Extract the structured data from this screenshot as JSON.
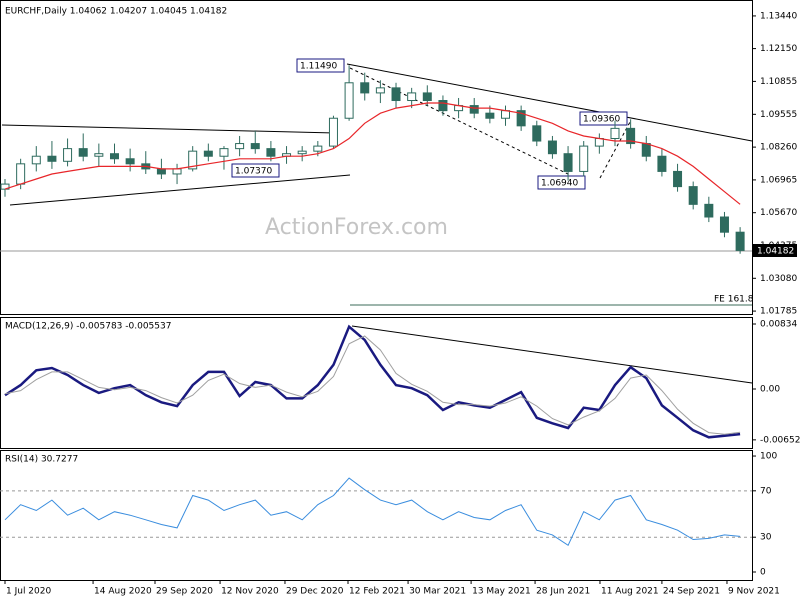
{
  "chart_data": [
    {
      "type": "candlestick",
      "title": "EURCHF,Daily  1.04062 1.04207 1.04045 1.04182",
      "color": "#2e6b5e",
      "open": [
        1.066,
        1.068,
        1.076,
        1.079,
        1.077,
        1.082,
        1.079,
        1.08,
        1.078,
        1.076,
        1.074,
        1.072,
        1.074,
        1.081,
        1.079,
        1.082,
        1.084,
        1.082,
        1.079,
        1.08,
        1.081,
        1.083,
        1.094,
        1.108,
        1.104,
        1.106,
        1.101,
        1.104,
        1.101,
        1.097,
        1.099,
        1.096,
        1.094,
        1.097,
        1.091,
        1.085,
        1.08,
        1.073,
        1.083,
        1.086,
        1.09,
        1.084,
        1.079,
        1.073,
        1.067,
        1.06,
        1.055,
        1.049
      ],
      "high": [
        1.07,
        1.078,
        1.083,
        1.085,
        1.086,
        1.088,
        1.084,
        1.084,
        1.082,
        1.081,
        1.078,
        1.076,
        1.083,
        1.084,
        1.083,
        1.087,
        1.089,
        1.085,
        1.083,
        1.083,
        1.085,
        1.095,
        1.1149,
        1.112,
        1.109,
        1.108,
        1.106,
        1.107,
        1.103,
        1.102,
        1.102,
        1.099,
        1.099,
        1.099,
        1.093,
        1.087,
        1.083,
        1.085,
        1.088,
        1.093,
        1.0936,
        1.087,
        1.082,
        1.076,
        1.069,
        1.063,
        1.057,
        1.051
      ],
      "low": [
        1.063,
        1.066,
        1.073,
        1.074,
        1.075,
        1.077,
        1.075,
        1.076,
        1.073,
        1.072,
        1.07,
        1.068,
        1.073,
        1.077,
        1.0737,
        1.079,
        1.08,
        1.077,
        1.076,
        1.077,
        1.079,
        1.082,
        1.093,
        1.101,
        1.1,
        1.098,
        1.098,
        1.099,
        1.095,
        1.094,
        1.094,
        1.092,
        1.091,
        1.089,
        1.083,
        1.078,
        1.0694,
        1.071,
        1.08,
        1.083,
        1.082,
        1.077,
        1.071,
        1.065,
        1.058,
        1.053,
        1.047,
        1.0405
      ],
      "close": [
        1.068,
        1.076,
        1.079,
        1.077,
        1.082,
        1.079,
        1.08,
        1.078,
        1.076,
        1.074,
        1.072,
        1.074,
        1.081,
        1.079,
        1.082,
        1.084,
        1.082,
        1.079,
        1.08,
        1.081,
        1.083,
        1.094,
        1.108,
        1.104,
        1.106,
        1.101,
        1.104,
        1.101,
        1.097,
        1.099,
        1.096,
        1.094,
        1.097,
        1.091,
        1.085,
        1.08,
        1.073,
        1.083,
        1.086,
        1.09,
        1.084,
        1.079,
        1.073,
        1.067,
        1.06,
        1.055,
        1.049,
        1.0418
      ],
      "overlay": {
        "color": "#e8262a",
        "values": [
          1.066,
          1.068,
          1.07,
          1.072,
          1.073,
          1.074,
          1.075,
          1.075,
          1.075,
          1.075,
          1.074,
          1.074,
          1.075,
          1.076,
          1.077,
          1.078,
          1.078,
          1.078,
          1.079,
          1.079,
          1.08,
          1.082,
          1.086,
          1.092,
          1.096,
          1.098,
          1.099,
          1.1,
          1.1,
          1.099,
          1.098,
          1.098,
          1.097,
          1.096,
          1.094,
          1.092,
          1.089,
          1.087,
          1.086,
          1.085,
          1.085,
          1.084,
          1.082,
          1.079,
          1.075,
          1.07,
          1.065,
          1.06
        ]
      },
      "xlim": [
        -0.32,
        47.76
      ],
      "ylim": [
        1.0167,
        1.1399
      ],
      "yticks": [
        {
          "value": 1.1344,
          "label": "1.13440"
        },
        {
          "value": 1.1215,
          "label": "1.12150"
        },
        1.10855,
        1.09555,
        {
          "value": 1.0826,
          "label": "1.08260"
        },
        1.06965,
        {
          "value": 1.0567,
          "label": "1.05670"
        },
        1.04375,
        {
          "value": 1.0308,
          "label": "1.03080"
        },
        1.01785
      ],
      "annotations": [
        "1.11490",
        "1.07370",
        "1.06940",
        "1.09360",
        "FE 161.8",
        "ActionForex.com",
        "1.04182"
      ]
    },
    {
      "type": "line",
      "title": "MACD(12,26,9) -0.005783 -0.005537",
      "series": [
        {
          "color": "#1a1a80",
          "width": 2.5,
          "values": [
            -0.0008,
            0.0005,
            0.0024,
            0.0027,
            0.0018,
            0.0005,
            -0.0005,
            0.0001,
            0.0005,
            -0.0008,
            -0.0017,
            -0.0022,
            0.0005,
            0.0022,
            0.0022,
            -0.0009,
            0.0009,
            0.0005,
            -0.0012,
            -0.0012,
            0.0005,
            0.0031,
            0.008,
            0.0063,
            0.0031,
            0.0005,
            0.0001,
            -0.0008,
            -0.0027,
            -0.0017,
            -0.0021,
            -0.0024,
            -0.0014,
            -0.0004,
            -0.0037,
            -0.0044,
            -0.005,
            -0.0024,
            -0.0027,
            0.0005,
            0.0028,
            0.0014,
            -0.0021,
            -0.0037,
            -0.0053,
            -0.0062,
            -0.006,
            -0.005783
          ]
        },
        {
          "color": "#a0a0a0",
          "width": 1,
          "values": [
            -0.0006,
            -0.0002,
            0.0012,
            0.0022,
            0.0022,
            0.0012,
            0.0002,
            -0.0001,
            0.0002,
            -0.0002,
            -0.0011,
            -0.0018,
            -0.0008,
            0.0011,
            0.0019,
            0.0007,
            0.0002,
            0.0005,
            -0.0004,
            -0.001,
            -0.0003,
            0.0016,
            0.0058,
            0.0068,
            0.005,
            0.002,
            0.0006,
            -0.0003,
            -0.0017,
            -0.002,
            -0.002,
            -0.0022,
            -0.0018,
            -0.001,
            -0.0022,
            -0.0038,
            -0.0046,
            -0.0036,
            -0.0028,
            -0.0012,
            0.0014,
            0.0018,
            -0.0002,
            -0.0026,
            -0.0044,
            -0.0056,
            -0.0058,
            -0.005537
          ]
        }
      ],
      "xlim": [
        -0.32,
        47.76
      ],
      "ylim": [
        -0.00757,
        0.00911
      ],
      "yticks": [
        0.00834,
        {
          "value": 0,
          "label": "0.00"
        },
        -0.006525
      ]
    },
    {
      "type": "line",
      "title": "RSI(14) 30.7277",
      "series": [
        {
          "color": "#3a8dde",
          "width": 1,
          "values": [
            45,
            58,
            53,
            62,
            49,
            55,
            45,
            52,
            49,
            45,
            41,
            38,
            66,
            62,
            53,
            58,
            62,
            49,
            52,
            45,
            58,
            66,
            81,
            71,
            62,
            58,
            62,
            52,
            45,
            52,
            47,
            45,
            53,
            58,
            36,
            32,
            23,
            52,
            45,
            62,
            66,
            45,
            41,
            36,
            28,
            29,
            32,
            30.7277
          ]
        }
      ],
      "xlim": [
        -0.32,
        47.76
      ],
      "ylim": [
        -6.9,
        105.2
      ],
      "yticks": [
        100,
        70,
        30,
        0
      ],
      "levels": [
        70,
        30
      ],
      "xticks": [
        {
          "value": 0,
          "label": "1 Jul 2020"
        },
        {
          "value": 5.63,
          "label": "14 Aug 2020"
        },
        {
          "value": 9.59,
          "label": "29 Sep 2020"
        },
        {
          "value": 13.75,
          "label": "12 Nov 2020"
        },
        {
          "value": 17.9,
          "label": "29 Dec 2020"
        },
        {
          "value": 21.93,
          "label": "12 Feb 2021"
        },
        {
          "value": 25.77,
          "label": "30 Mar 2021"
        },
        {
          "value": 29.8,
          "label": "13 May 2021"
        },
        {
          "value": 33.89,
          "label": "28 Jun 2021"
        },
        {
          "value": 38.04,
          "label": "11 Aug 2021"
        },
        {
          "value": 42.0,
          "label": "24 Sep 2021"
        },
        {
          "value": 46.16,
          "label": "9 Nov 2021"
        }
      ]
    }
  ]
}
